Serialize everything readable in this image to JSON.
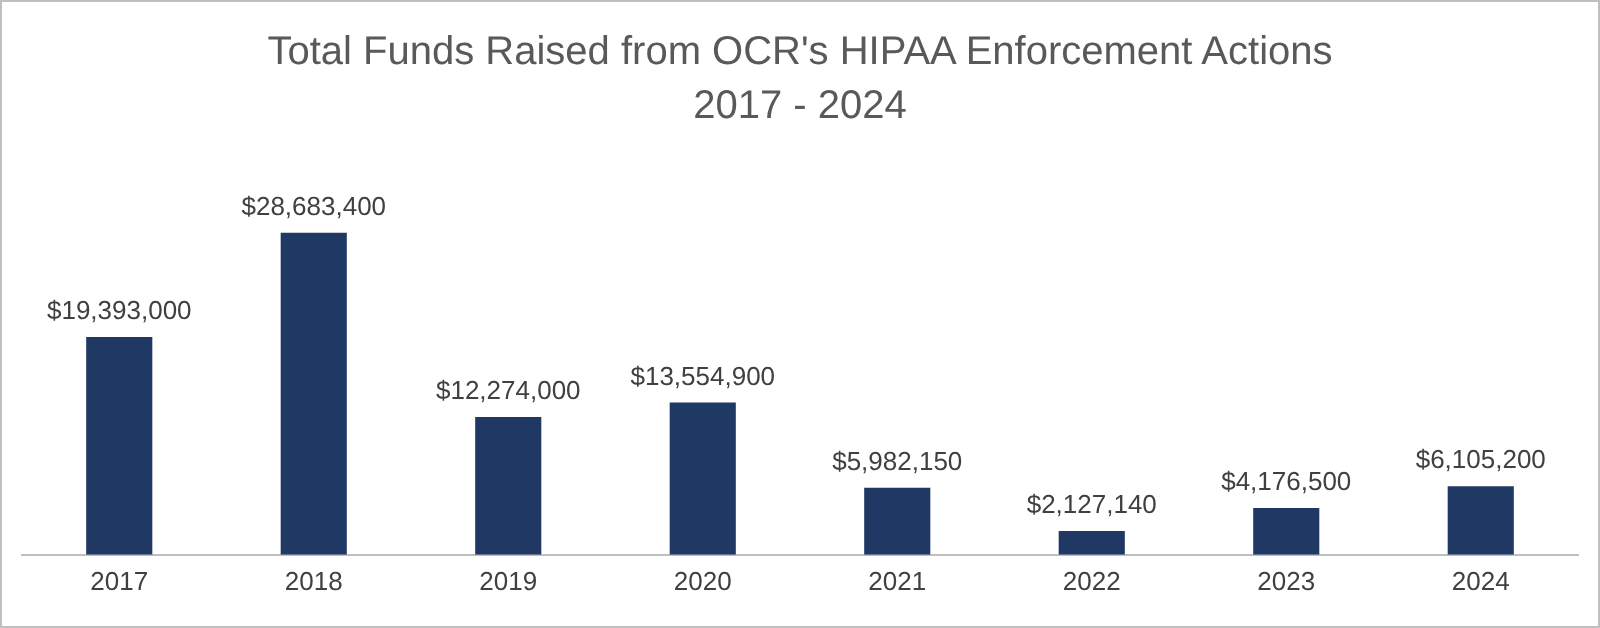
{
  "chart_data": {
    "type": "bar",
    "title": "Total Funds Raised from OCR's HIPAA Enforcement Actions",
    "subtitle": "2017 - 2024",
    "categories": [
      "2017",
      "2018",
      "2019",
      "2020",
      "2021",
      "2022",
      "2023",
      "2024"
    ],
    "values": [
      19393000,
      28683400,
      12274000,
      13554900,
      5982150,
      2127140,
      4176500,
      6105200
    ],
    "value_labels": [
      "$19,393,000",
      "$28,683,400",
      "$12,274,000",
      "$13,554,900",
      "$5,982,150",
      "$2,127,140",
      "$4,176,500",
      "$6,105,200"
    ],
    "color": "#1f3864",
    "grid": false,
    "legend": false
  }
}
